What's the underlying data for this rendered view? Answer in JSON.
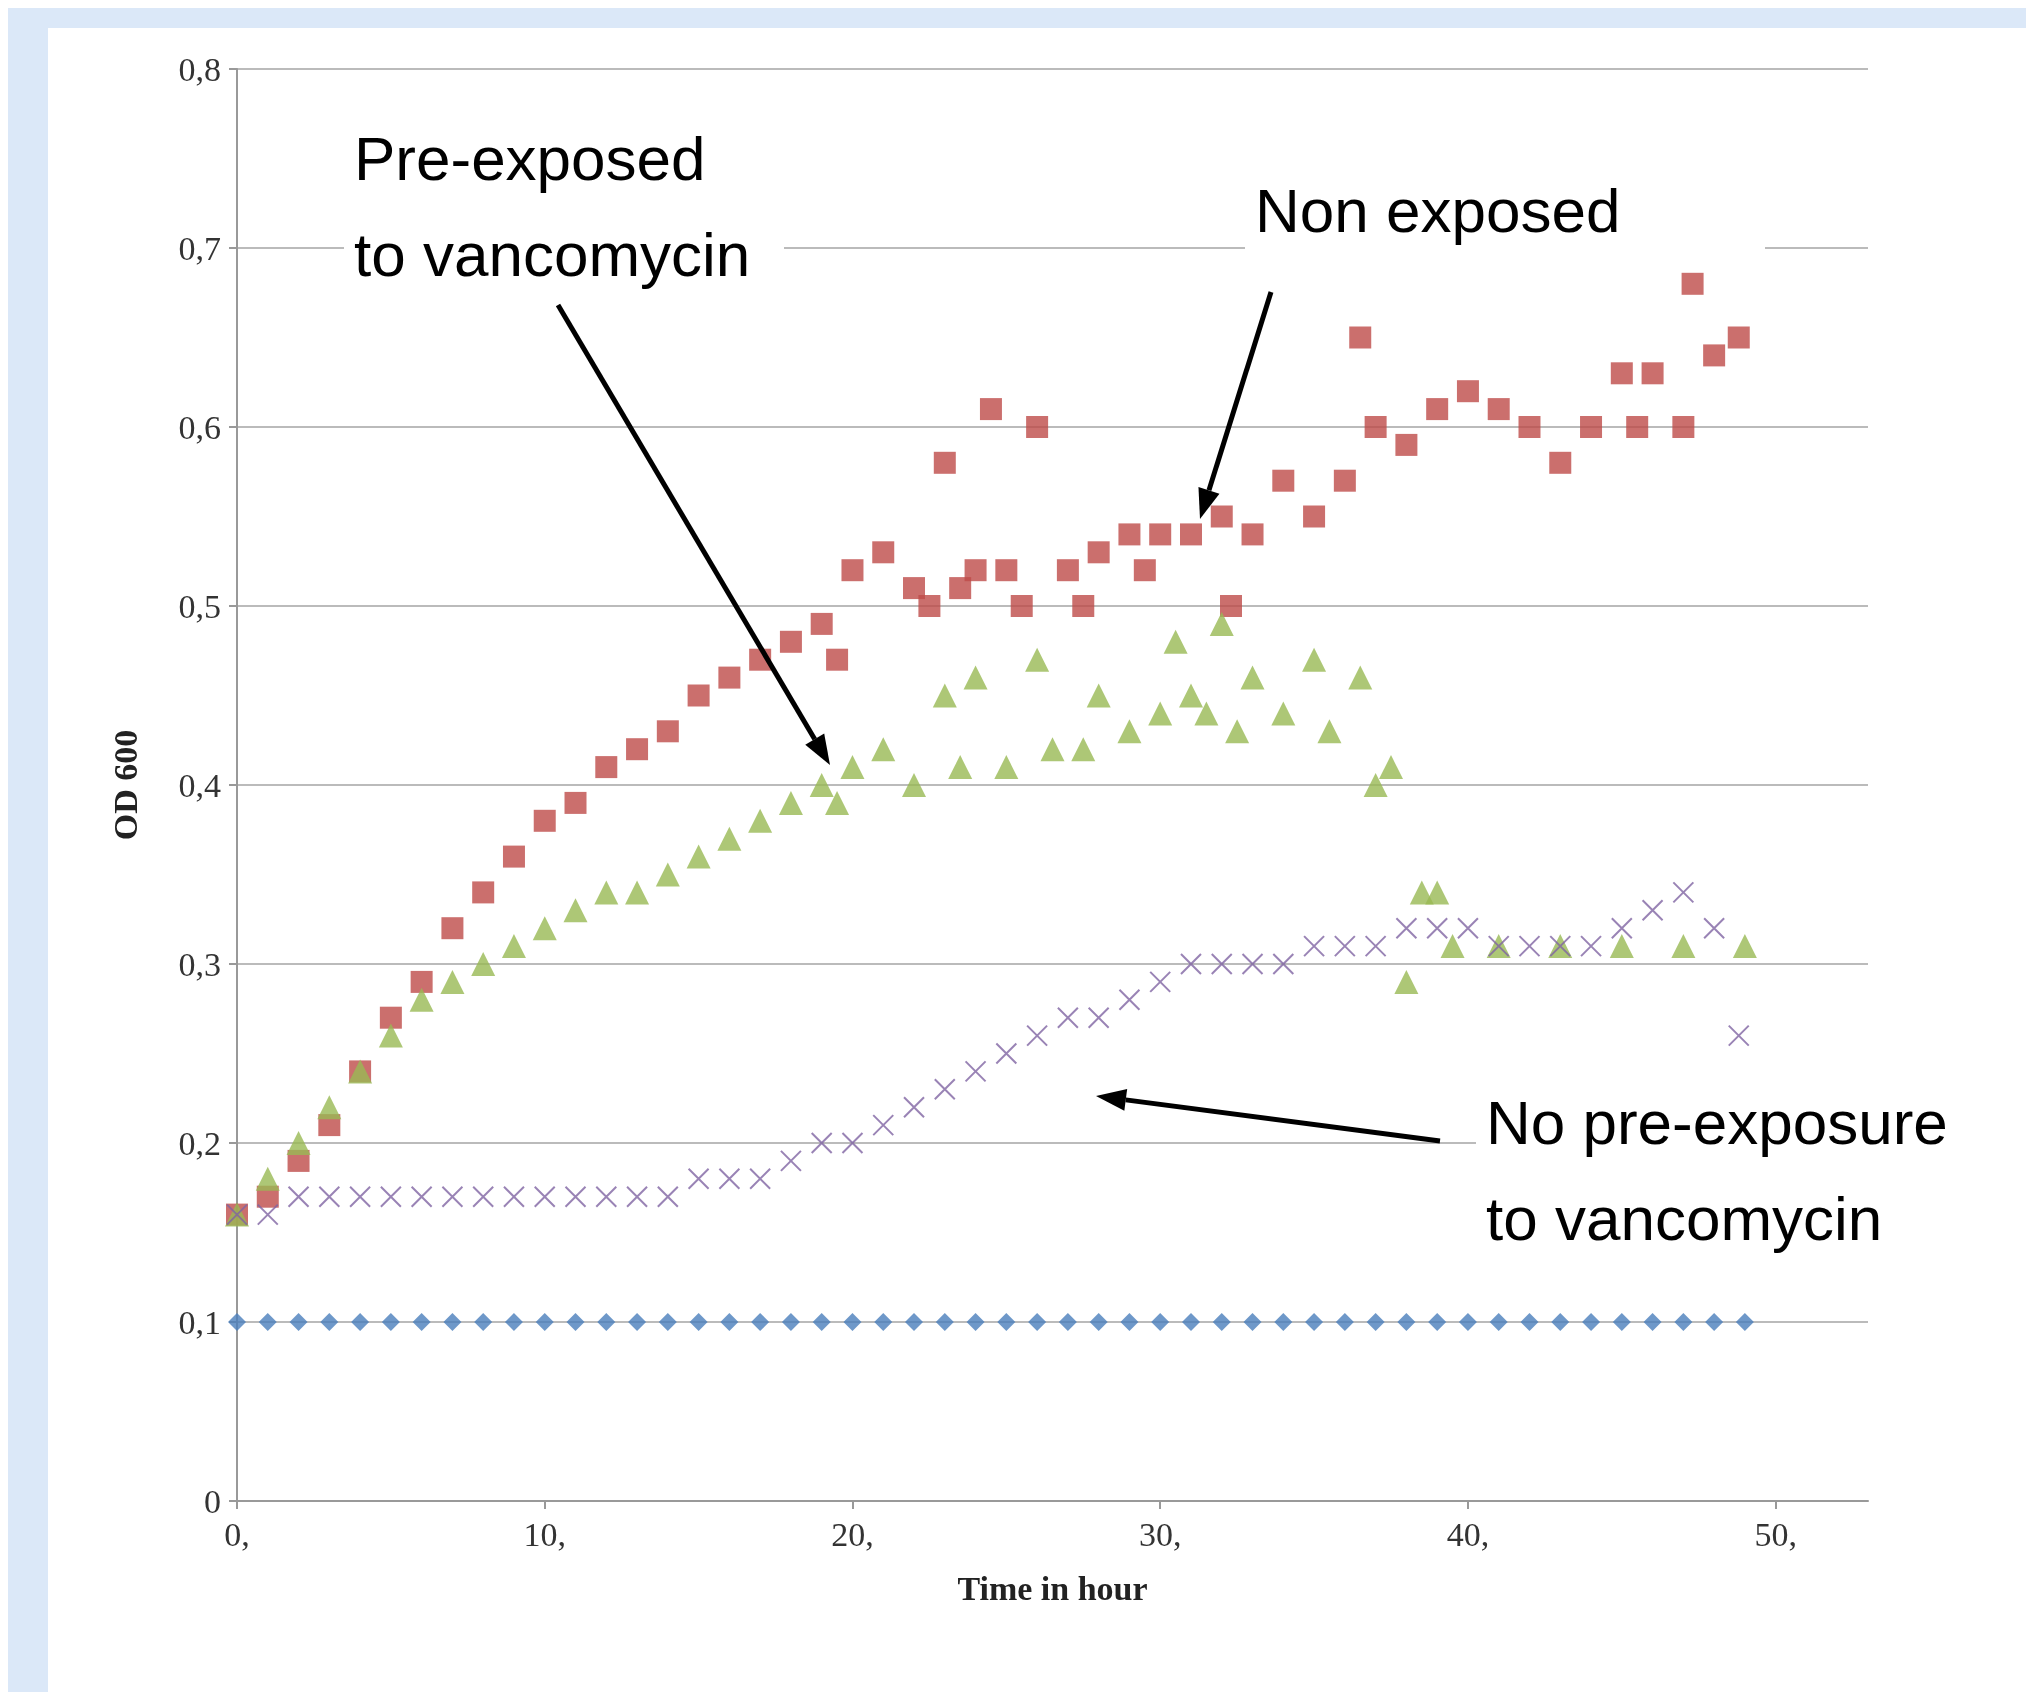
{
  "chart_data": {
    "type": "scatter",
    "xlabel": "Time in hour",
    "ylabel": "OD 600",
    "xlim": [
      0,
      53
    ],
    "ylim": [
      0,
      0.8
    ],
    "xticks": [
      {
        "value": 0,
        "label": "0,"
      },
      {
        "value": 10,
        "label": "10,"
      },
      {
        "value": 20,
        "label": "20,"
      },
      {
        "value": 30,
        "label": "30,"
      },
      {
        "value": 40,
        "label": "40,"
      },
      {
        "value": 50,
        "label": "50,"
      }
    ],
    "yticks": [
      {
        "value": 0,
        "label": "0"
      },
      {
        "value": 0.1,
        "label": "0,1"
      },
      {
        "value": 0.2,
        "label": "0,2"
      },
      {
        "value": 0.3,
        "label": "0,3"
      },
      {
        "value": 0.4,
        "label": "0,4"
      },
      {
        "value": 0.5,
        "label": "0,5"
      },
      {
        "value": 0.6,
        "label": "0,6"
      },
      {
        "value": 0.7,
        "label": "0,7"
      },
      {
        "value": 0.8,
        "label": "0,8"
      }
    ],
    "grid": "y",
    "series": [
      {
        "color": "#4a7ebb",
        "marker": "diamond",
        "x": [
          0,
          1,
          2,
          3,
          4,
          5,
          6,
          7,
          8,
          9,
          10,
          11,
          12,
          13,
          14,
          15,
          16,
          17,
          18,
          19,
          20,
          21,
          22,
          23,
          24,
          25,
          26,
          27,
          28,
          29,
          30,
          31,
          32,
          33,
          34,
          35,
          36,
          37,
          38,
          39,
          40,
          41,
          42,
          43,
          44,
          45,
          46,
          47,
          48,
          49
        ],
        "values": [
          0.1,
          0.1,
          0.1,
          0.1,
          0.1,
          0.1,
          0.1,
          0.1,
          0.1,
          0.1,
          0.1,
          0.1,
          0.1,
          0.1,
          0.1,
          0.1,
          0.1,
          0.1,
          0.1,
          0.1,
          0.1,
          0.1,
          0.1,
          0.1,
          0.1,
          0.1,
          0.1,
          0.1,
          0.1,
          0.1,
          0.1,
          0.1,
          0.1,
          0.1,
          0.1,
          0.1,
          0.1,
          0.1,
          0.1,
          0.1,
          0.1,
          0.1,
          0.1,
          0.1,
          0.1,
          0.1,
          0.1,
          0.1,
          0.1,
          0.1
        ]
      },
      {
        "color": "#be4b48",
        "marker": "square",
        "x": [
          0,
          1,
          2,
          3,
          4,
          5,
          6,
          7,
          8,
          9,
          10,
          11,
          12,
          13,
          14,
          15,
          16,
          17,
          18,
          19,
          19.5,
          20,
          21,
          22,
          22.5,
          23,
          23.5,
          24,
          24.5,
          25,
          25.5,
          26,
          27,
          27.5,
          28,
          29,
          29.5,
          30,
          31,
          32,
          32.3,
          33,
          34,
          35,
          36,
          36.5,
          37,
          38,
          39,
          40,
          41,
          42,
          43,
          44,
          45,
          45.5,
          46,
          47,
          47.3,
          48,
          48.8
        ],
        "values": [
          0.16,
          0.17,
          0.19,
          0.21,
          0.24,
          0.27,
          0.29,
          0.32,
          0.34,
          0.36,
          0.38,
          0.39,
          0.41,
          0.42,
          0.43,
          0.45,
          0.46,
          0.47,
          0.48,
          0.49,
          0.47,
          0.52,
          0.53,
          0.51,
          0.5,
          0.58,
          0.51,
          0.52,
          0.61,
          0.52,
          0.5,
          0.6,
          0.52,
          0.5,
          0.53,
          0.54,
          0.52,
          0.54,
          0.54,
          0.55,
          0.5,
          0.54,
          0.57,
          0.55,
          0.57,
          0.65,
          0.6,
          0.59,
          0.61,
          0.62,
          0.61,
          0.6,
          0.58,
          0.6,
          0.63,
          0.6,
          0.63,
          0.6,
          0.68,
          0.64,
          0.65
        ]
      },
      {
        "color": "#98b954",
        "marker": "triangle",
        "x": [
          0,
          1,
          2,
          3,
          4,
          5,
          6,
          7,
          8,
          9,
          10,
          11,
          12,
          13,
          14,
          15,
          16,
          17,
          18,
          19,
          19.5,
          20,
          21,
          22,
          23,
          23.5,
          24,
          25,
          26,
          26.5,
          27.5,
          28,
          29,
          30,
          30.5,
          31,
          31.5,
          32,
          32.5,
          33,
          34,
          35,
          35.5,
          36.5,
          37,
          37.5,
          38,
          38.5,
          39,
          39.5,
          41,
          43,
          45,
          47,
          49
        ],
        "values": [
          0.16,
          0.18,
          0.2,
          0.22,
          0.24,
          0.26,
          0.28,
          0.29,
          0.3,
          0.31,
          0.32,
          0.33,
          0.34,
          0.34,
          0.35,
          0.36,
          0.37,
          0.38,
          0.39,
          0.4,
          0.39,
          0.41,
          0.42,
          0.4,
          0.45,
          0.41,
          0.46,
          0.41,
          0.47,
          0.42,
          0.42,
          0.45,
          0.43,
          0.44,
          0.48,
          0.45,
          0.44,
          0.49,
          0.43,
          0.46,
          0.44,
          0.47,
          0.43,
          0.46,
          0.4,
          0.41,
          0.29,
          0.34,
          0.34,
          0.31,
          0.31,
          0.31,
          0.31,
          0.31,
          0.31
        ]
      },
      {
        "color": "#8064a2",
        "marker": "cross",
        "x": [
          0,
          1,
          2,
          3,
          4,
          5,
          6,
          7,
          8,
          9,
          10,
          11,
          12,
          13,
          14,
          15,
          16,
          17,
          18,
          19,
          20,
          21,
          22,
          23,
          24,
          25,
          26,
          27,
          28,
          29,
          30,
          31,
          32,
          33,
          34,
          35,
          36,
          37,
          38,
          39,
          40,
          41,
          42,
          43,
          44,
          45,
          46,
          47,
          48,
          48.8
        ],
        "values": [
          0.16,
          0.16,
          0.17,
          0.17,
          0.17,
          0.17,
          0.17,
          0.17,
          0.17,
          0.17,
          0.17,
          0.17,
          0.17,
          0.17,
          0.17,
          0.18,
          0.18,
          0.18,
          0.19,
          0.2,
          0.2,
          0.21,
          0.22,
          0.23,
          0.24,
          0.25,
          0.26,
          0.27,
          0.27,
          0.28,
          0.29,
          0.3,
          0.3,
          0.3,
          0.3,
          0.31,
          0.31,
          0.31,
          0.32,
          0.32,
          0.32,
          0.31,
          0.31,
          0.31,
          0.31,
          0.32,
          0.33,
          0.34,
          0.32,
          0.26
        ]
      }
    ],
    "annotations": [
      "Pre-exposed to vancomycin",
      "Non exposed",
      "No pre-exposure to vancomycin"
    ]
  }
}
